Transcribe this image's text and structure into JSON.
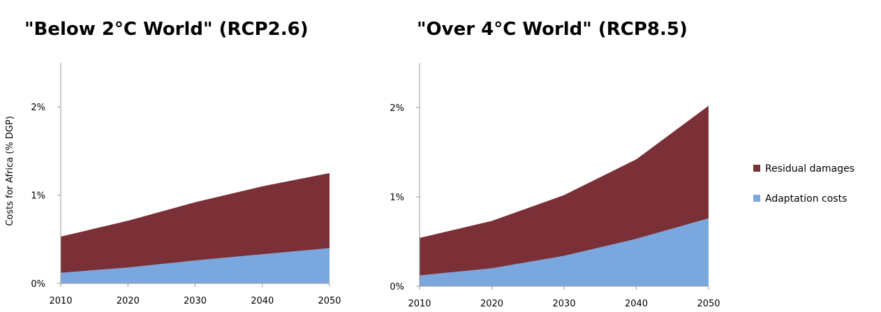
{
  "chart_data": [
    {
      "type": "area",
      "stacked": true,
      "title": "\"Below 2°C World\" (RCP2.6)",
      "ylabel": "Costs for Africa (% DGP)",
      "x": [
        2010,
        2020,
        2030,
        2040,
        2050
      ],
      "ylim": [
        0,
        2.5
      ],
      "yticks": [
        "0%",
        "1%",
        "2%"
      ],
      "xticks": [
        "2010",
        "2020",
        "2030",
        "2040",
        "2050"
      ],
      "series": [
        {
          "name": "Adaptation costs",
          "color": "#7aa7de",
          "values": [
            0.12,
            0.18,
            0.26,
            0.33,
            0.4
          ]
        },
        {
          "name": "Residual damages",
          "color": "#7b3038",
          "values": [
            0.41,
            0.53,
            0.66,
            0.77,
            0.85
          ]
        }
      ]
    },
    {
      "type": "area",
      "stacked": true,
      "title": "\"Over 4°C World\" (RCP8.5)",
      "ylabel": "",
      "x": [
        2010,
        2020,
        2030,
        2040,
        2050
      ],
      "ylim": [
        0,
        2.5
      ],
      "yticks": [
        "0%",
        "1%",
        "2%"
      ],
      "xticks": [
        "2010",
        "2020",
        "2030",
        "2040",
        "2050"
      ],
      "series": [
        {
          "name": "Adaptation costs",
          "color": "#7aa7de",
          "values": [
            0.12,
            0.2,
            0.34,
            0.53,
            0.76
          ]
        },
        {
          "name": "Residual damages",
          "color": "#7b3038",
          "values": [
            0.42,
            0.53,
            0.68,
            0.89,
            1.26
          ]
        }
      ]
    }
  ],
  "legend": {
    "items": [
      {
        "label": "Residual damages",
        "color": "#7b3038"
      },
      {
        "label": "Adaptation costs",
        "color": "#7aa7de"
      }
    ]
  }
}
